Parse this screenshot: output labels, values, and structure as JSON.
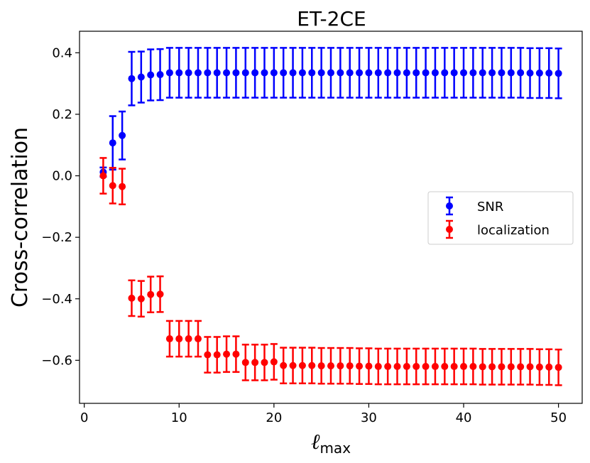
{
  "chart_data": {
    "type": "errorbar",
    "title": "ET-2CE",
    "xlabel": {
      "symbol": "ℓ",
      "subscript": "max"
    },
    "ylabel": "Cross-correlation",
    "xlim": [
      -0.5,
      52.5
    ],
    "ylim": [
      -0.74,
      0.47
    ],
    "xticks": [
      0,
      10,
      20,
      30,
      40,
      50
    ],
    "xtick_labels": [
      "0",
      "10",
      "20",
      "30",
      "40",
      "50"
    ],
    "yticks": [
      0.4,
      0.2,
      0.0,
      -0.2,
      -0.4,
      -0.6
    ],
    "ytick_labels": [
      "0.4",
      "0.2",
      "0.0",
      "−0.2",
      "−0.4",
      "−0.6"
    ],
    "grid": false,
    "legend_position": "center-right",
    "x": [
      2,
      3,
      4,
      5,
      6,
      7,
      8,
      9,
      10,
      11,
      12,
      13,
      14,
      15,
      16,
      17,
      18,
      19,
      20,
      21,
      22,
      23,
      24,
      25,
      26,
      27,
      28,
      29,
      30,
      31,
      32,
      33,
      34,
      35,
      36,
      37,
      38,
      39,
      40,
      41,
      42,
      43,
      44,
      45,
      46,
      47,
      48,
      49,
      50
    ],
    "series": [
      {
        "name": "SNR",
        "color": "#0000ff",
        "values": [
          0.012,
          0.107,
          0.131,
          0.316,
          0.321,
          0.328,
          0.329,
          0.335,
          0.335,
          0.335,
          0.335,
          0.335,
          0.335,
          0.335,
          0.335,
          0.335,
          0.335,
          0.335,
          0.335,
          0.335,
          0.335,
          0.335,
          0.335,
          0.335,
          0.335,
          0.335,
          0.335,
          0.335,
          0.335,
          0.335,
          0.335,
          0.335,
          0.335,
          0.335,
          0.335,
          0.335,
          0.335,
          0.335,
          0.335,
          0.335,
          0.335,
          0.335,
          0.335,
          0.335,
          0.335,
          0.334,
          0.334,
          0.334,
          0.333
        ],
        "errors": [
          0.015,
          0.087,
          0.078,
          0.087,
          0.083,
          0.083,
          0.083,
          0.081,
          0.081,
          0.081,
          0.081,
          0.081,
          0.081,
          0.081,
          0.081,
          0.081,
          0.081,
          0.081,
          0.081,
          0.081,
          0.081,
          0.081,
          0.081,
          0.081,
          0.081,
          0.081,
          0.081,
          0.081,
          0.081,
          0.081,
          0.081,
          0.081,
          0.081,
          0.081,
          0.081,
          0.081,
          0.081,
          0.081,
          0.081,
          0.081,
          0.081,
          0.081,
          0.081,
          0.081,
          0.081,
          0.081,
          0.081,
          0.081,
          0.081
        ]
      },
      {
        "name": "localization",
        "color": "#ff0000",
        "values": [
          0.0,
          -0.032,
          -0.035,
          -0.398,
          -0.4,
          -0.386,
          -0.385,
          -0.53,
          -0.53,
          -0.53,
          -0.53,
          -0.582,
          -0.582,
          -0.58,
          -0.58,
          -0.607,
          -0.607,
          -0.607,
          -0.605,
          -0.617,
          -0.617,
          -0.617,
          -0.617,
          -0.618,
          -0.618,
          -0.618,
          -0.618,
          -0.619,
          -0.619,
          -0.62,
          -0.62,
          -0.62,
          -0.62,
          -0.62,
          -0.62,
          -0.62,
          -0.62,
          -0.62,
          -0.62,
          -0.62,
          -0.621,
          -0.621,
          -0.621,
          -0.621,
          -0.621,
          -0.621,
          -0.622,
          -0.622,
          -0.623
        ]
      }
    ],
    "localization_errors": 0.058
  }
}
